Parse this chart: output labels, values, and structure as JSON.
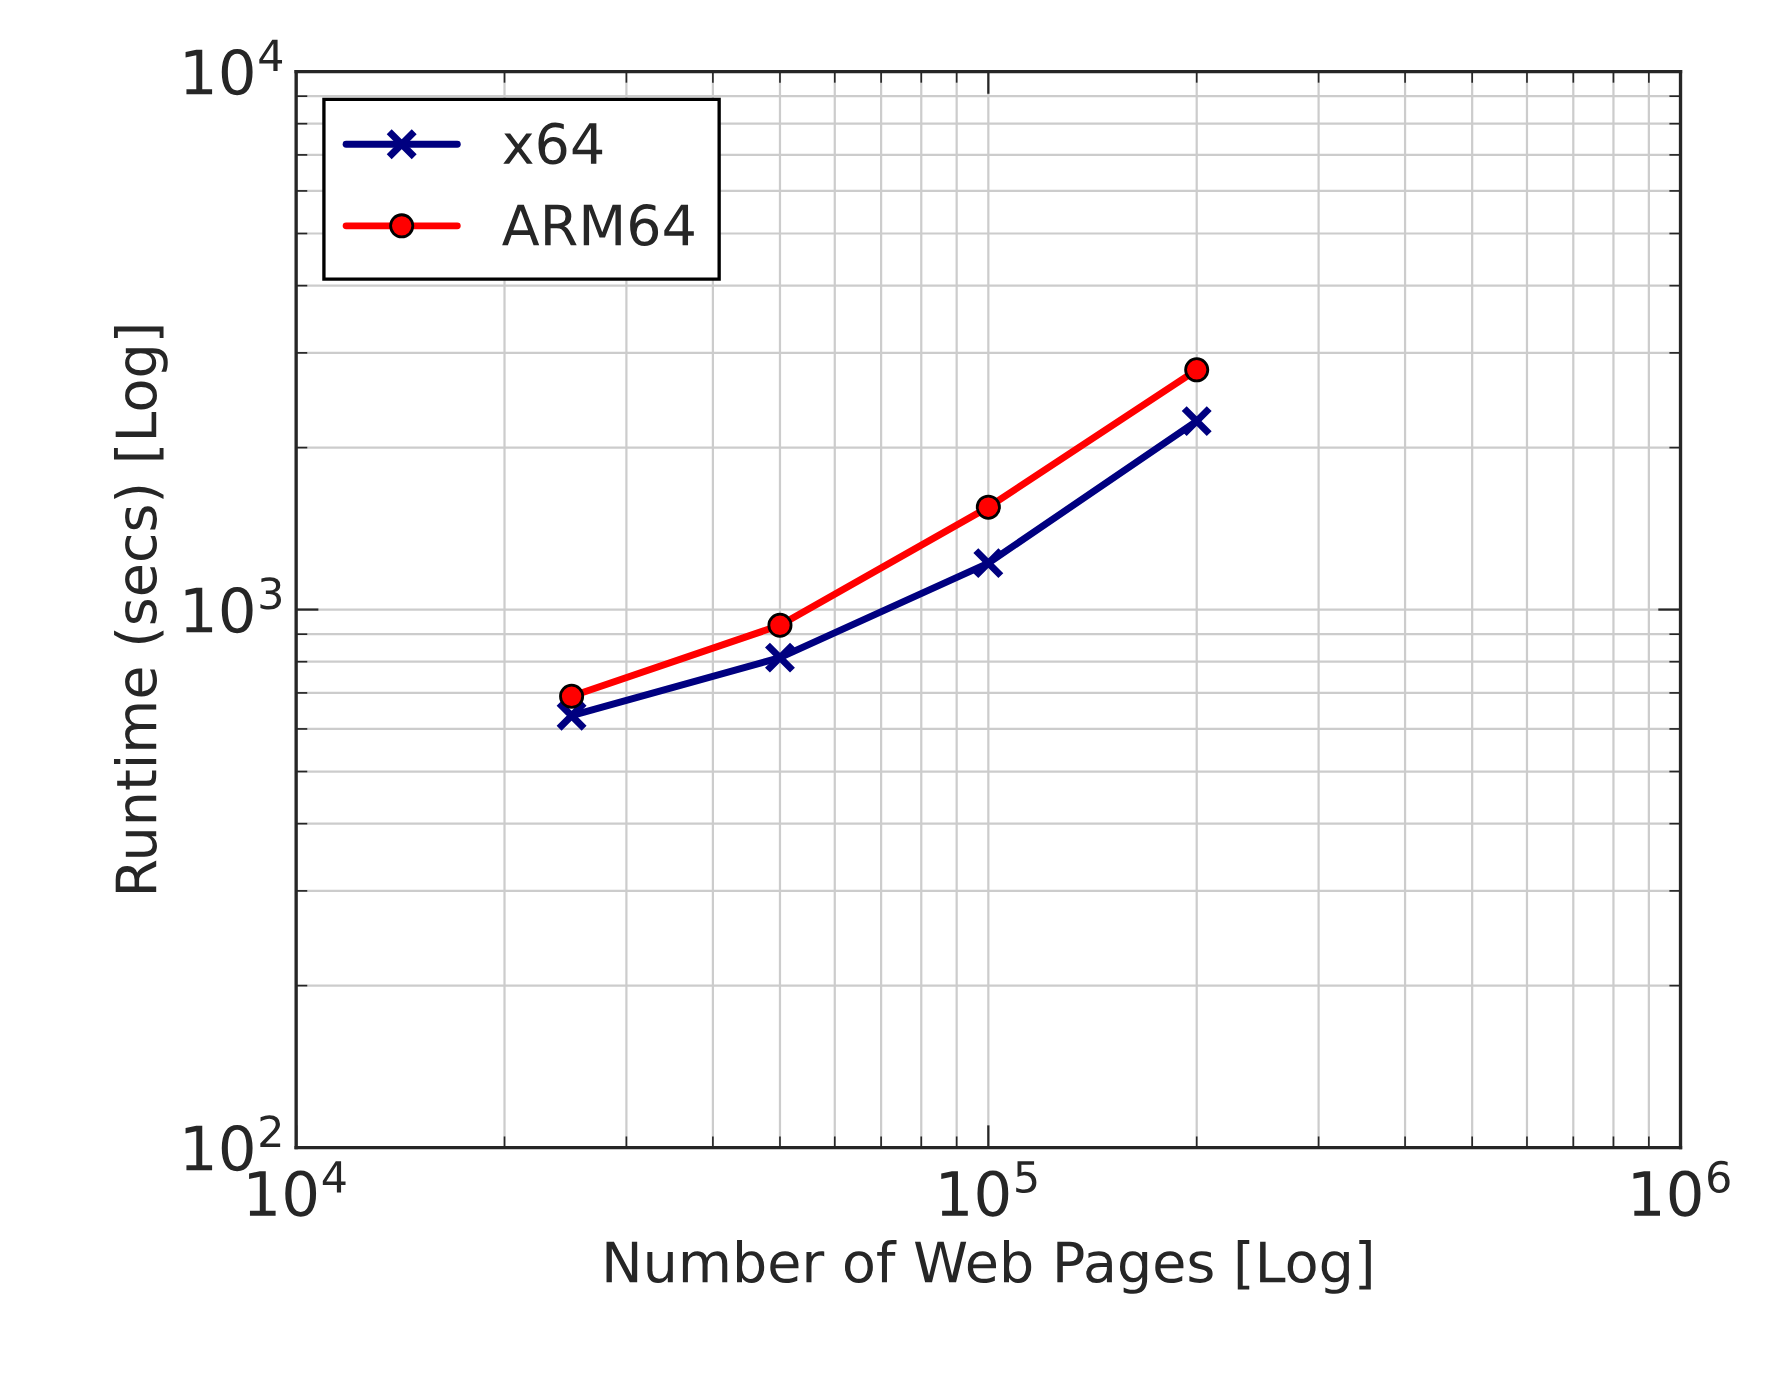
{
  "chart_data": {
    "type": "line",
    "xlabel": "Number of Web Pages [Log]",
    "ylabel": "Runtime (secs) [Log]",
    "log": "xy",
    "grid": true,
    "legend": "top left",
    "xlim": [
      10000,
      1000000
    ],
    "ylim": [
      100,
      10000
    ],
    "xticks": [
      {
        "value": 10000,
        "label": "10$^{4}$"
      },
      {
        "value": 100000,
        "label": "10$^{5}$"
      },
      {
        "value": 1000000,
        "label": "10$^{6}$"
      }
    ],
    "yticks": [
      {
        "value": 100,
        "label": "10$^{2}$"
      },
      {
        "value": 1000,
        "label": "10$^{3}$"
      },
      {
        "value": 10000,
        "label": "10$^{4}$"
      }
    ],
    "x": [
      25000,
      50000,
      100000,
      200000
    ],
    "series": [
      {
        "name": "x64",
        "color": "#000080",
        "marker": "cross",
        "values": [
          635,
          814,
          1220,
          2240
        ]
      },
      {
        "name": "ARM64",
        "color": "#ff0000",
        "marker": "circle",
        "values": [
          690,
          935,
          1550,
          2790
        ]
      }
    ]
  }
}
